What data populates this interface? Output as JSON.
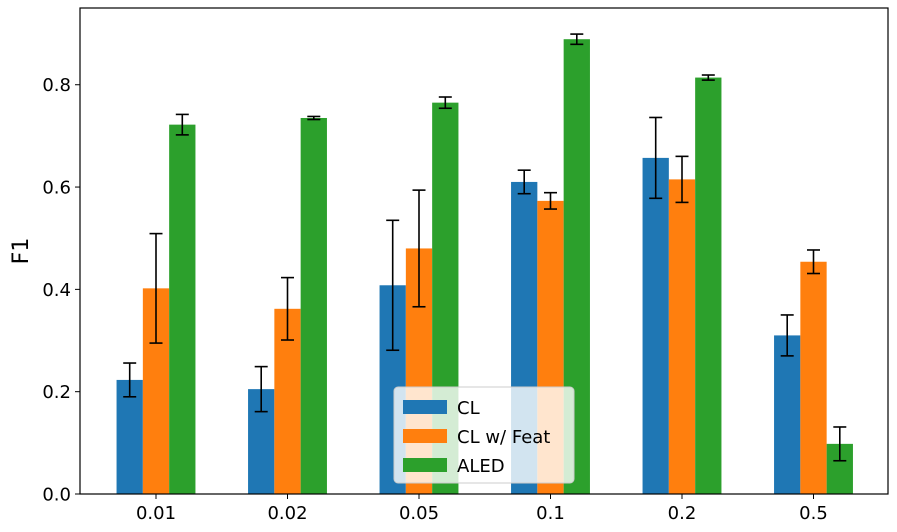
{
  "chart_data": {
    "type": "bar",
    "title": "",
    "xlabel": "",
    "ylabel": "F1",
    "ylim": [
      0,
      0.95
    ],
    "yticks": [
      0.0,
      0.2,
      0.4,
      0.6,
      0.8
    ],
    "ytick_labels": [
      "0.0",
      "0.2",
      "0.4",
      "0.6",
      "0.8"
    ],
    "categories": [
      "0.01",
      "0.02",
      "0.05",
      "0.1",
      "0.2",
      "0.5"
    ],
    "legend_position": "bottom-center",
    "series": [
      {
        "name": "CL",
        "color": "#1f77b4",
        "values": [
          0.223,
          0.205,
          0.408,
          0.61,
          0.657,
          0.31
        ],
        "errors": [
          0.033,
          0.044,
          0.127,
          0.023,
          0.079,
          0.04
        ]
      },
      {
        "name": "CL w/ Feat",
        "color": "#ff7f0e",
        "values": [
          0.402,
          0.362,
          0.48,
          0.573,
          0.615,
          0.454
        ],
        "errors": [
          0.107,
          0.061,
          0.114,
          0.016,
          0.045,
          0.023
        ]
      },
      {
        "name": "ALED",
        "color": "#2ca02c",
        "values": [
          0.722,
          0.735,
          0.765,
          0.889,
          0.814,
          0.098
        ],
        "errors": [
          0.02,
          0.003,
          0.011,
          0.01,
          0.005,
          0.033
        ]
      }
    ]
  }
}
